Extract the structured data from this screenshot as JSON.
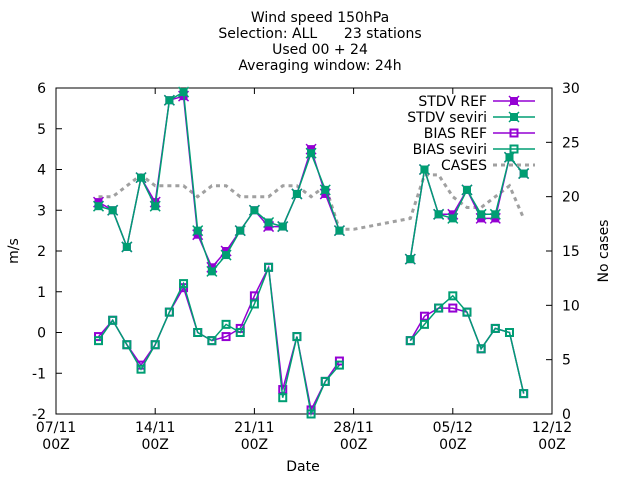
{
  "chart_data": {
    "type": "line",
    "title_lines": [
      "Wind speed 150hPa",
      "Selection: ALL      23 stations",
      "Used 00 + 24",
      "Averaging window: 24h"
    ],
    "xlabel": "Date",
    "ylabel": "m/s",
    "y2label": "No cases",
    "xlim_days": [
      0,
      35
    ],
    "ylim": [
      -2,
      6
    ],
    "y2lim": [
      0,
      30
    ],
    "x_ticks": [
      {
        "day": 0,
        "line1": "07/11",
        "line2": "00Z"
      },
      {
        "day": 7,
        "line1": "14/11",
        "line2": "00Z"
      },
      {
        "day": 14,
        "line1": "21/11",
        "line2": "00Z"
      },
      {
        "day": 21,
        "line1": "28/11",
        "line2": "00Z"
      },
      {
        "day": 28,
        "line1": "05/12",
        "line2": "00Z"
      },
      {
        "day": 35,
        "line1": "12/12",
        "line2": "00Z"
      }
    ],
    "y_ticks": [
      -2,
      -1,
      0,
      1,
      2,
      3,
      4,
      5,
      6
    ],
    "y2_ticks": [
      0,
      5,
      10,
      15,
      20,
      25,
      30
    ],
    "legend_position": "top-right",
    "x_days": [
      3,
      4,
      5,
      6,
      7,
      8,
      9,
      10,
      11,
      12,
      13,
      14,
      15,
      16,
      17,
      18,
      19,
      20,
      21,
      25,
      26,
      27,
      28,
      29,
      30,
      31,
      32,
      33
    ],
    "series": [
      {
        "name": "STDV REF",
        "color": "#9400d3",
        "axis": "y1",
        "marker": "x-square",
        "values": [
          3.2,
          3.0,
          2.1,
          3.8,
          3.2,
          5.7,
          5.8,
          2.4,
          1.6,
          2.0,
          2.5,
          3.0,
          2.6,
          2.6,
          3.4,
          4.5,
          3.4,
          2.5,
          null,
          1.8,
          4.0,
          2.9,
          2.9,
          3.5,
          2.8,
          2.8,
          4.3,
          3.9
        ]
      },
      {
        "name": "STDV seviri",
        "color": "#009e73",
        "axis": "y1",
        "marker": "x-square",
        "values": [
          3.1,
          3.0,
          2.1,
          3.8,
          3.1,
          5.7,
          5.9,
          2.5,
          1.5,
          1.9,
          2.5,
          3.0,
          2.7,
          2.6,
          3.4,
          4.4,
          3.5,
          2.5,
          null,
          1.8,
          4.0,
          2.9,
          2.8,
          3.5,
          2.9,
          2.9,
          4.3,
          3.9
        ]
      },
      {
        "name": "BIAS REF",
        "color": "#9400d3",
        "axis": "y1",
        "marker": "box",
        "values": [
          -0.1,
          0.3,
          -0.3,
          -0.8,
          -0.3,
          0.5,
          1.1,
          0.0,
          -0.2,
          -0.1,
          0.1,
          0.9,
          1.6,
          -1.4,
          -0.1,
          -1.9,
          -1.2,
          -0.7,
          null,
          -0.2,
          0.4,
          0.6,
          0.6,
          0.5,
          -0.4,
          0.1,
          0.0,
          -1.5
        ]
      },
      {
        "name": "BIAS seviri",
        "color": "#009e73",
        "axis": "y1",
        "marker": "box",
        "values": [
          -0.2,
          0.3,
          -0.3,
          -0.9,
          -0.3,
          0.5,
          1.2,
          0.0,
          -0.2,
          0.2,
          0.0,
          0.7,
          1.6,
          -1.6,
          -0.1,
          -2.0,
          -1.2,
          -0.8,
          null,
          -0.2,
          0.2,
          0.6,
          0.9,
          0.5,
          -0.4,
          0.1,
          0.0,
          -1.5
        ]
      },
      {
        "name": "CASES",
        "color": "#a0a0a0",
        "axis": "y2",
        "marker": "none",
        "dashed": true,
        "values": [
          20,
          20,
          21,
          22,
          21,
          21,
          21,
          20,
          21,
          21,
          20,
          20,
          20,
          21,
          21,
          20,
          21,
          17,
          17,
          18,
          22,
          22,
          20,
          19,
          19,
          20,
          21,
          18
        ]
      }
    ]
  }
}
